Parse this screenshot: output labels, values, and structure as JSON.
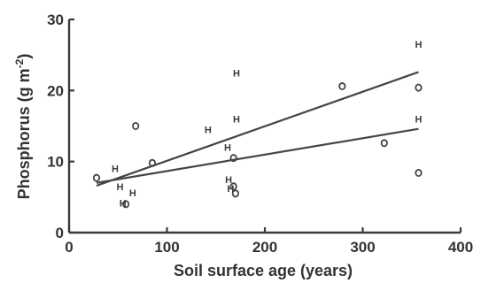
{
  "chart_data": {
    "type": "scatter",
    "title": "",
    "xlabel": "Soil surface age (years)",
    "ylabel_parts": [
      "Phosphorus (g m",
      "-2",
      ")"
    ],
    "xlim": [
      0,
      400
    ],
    "ylim": [
      0,
      30
    ],
    "x_ticks": [
      0,
      100,
      200,
      300,
      400
    ],
    "y_ticks": [
      0,
      10,
      20,
      30
    ],
    "grid": false,
    "legend": "none",
    "series": [
      {
        "marker": "H",
        "points": [
          [
            47,
            9
          ],
          [
            52,
            6.5
          ],
          [
            55,
            4.2
          ],
          [
            65,
            5.6
          ],
          [
            142,
            14.5
          ],
          [
            162,
            12
          ],
          [
            163,
            7.5
          ],
          [
            165,
            6.2
          ],
          [
            171,
            16
          ],
          [
            171,
            22.5
          ],
          [
            357,
            16
          ],
          [
            357,
            26.5
          ]
        ]
      },
      {
        "marker": "O",
        "points": [
          [
            28,
            7.7
          ],
          [
            58,
            4
          ],
          [
            68,
            15
          ],
          [
            85,
            9.8
          ],
          [
            168,
            10.5
          ],
          [
            168,
            6.5
          ],
          [
            170,
            5.5
          ],
          [
            279,
            20.6
          ],
          [
            322,
            12.6
          ],
          [
            357,
            20.4
          ],
          [
            357,
            8.4
          ]
        ]
      }
    ],
    "trend_lines": [
      {
        "x": [
          28,
          357
        ],
        "y": [
          6.6,
          22.6
        ]
      },
      {
        "x": [
          28,
          357
        ],
        "y": [
          7,
          14.6
        ]
      }
    ]
  }
}
